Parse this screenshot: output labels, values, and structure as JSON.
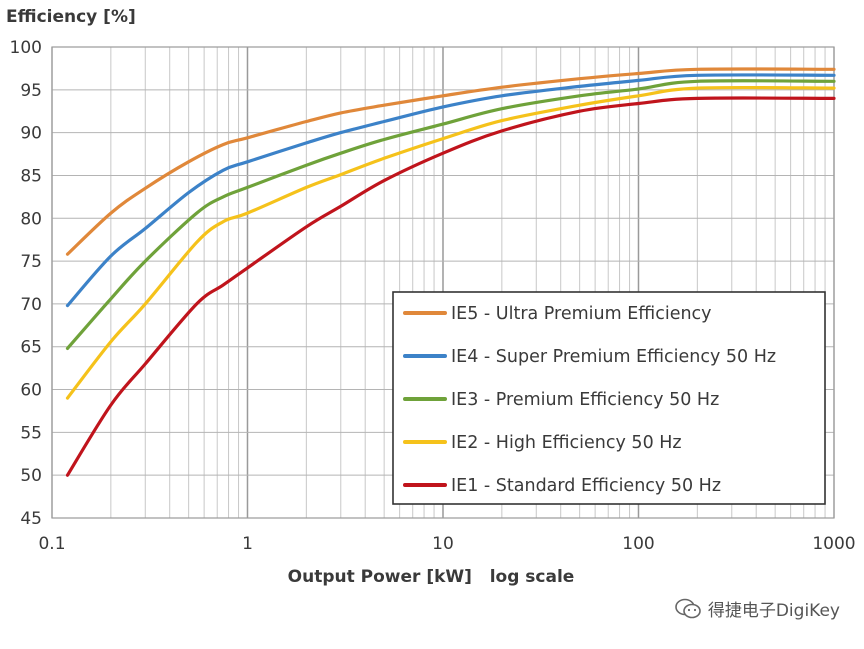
{
  "chart_data": {
    "type": "line",
    "title": "",
    "ylabel": "Efficiency  [%]",
    "xlabel": "Output Power [kW]   log scale",
    "xscale": "log",
    "xlim": [
      0.1,
      1000
    ],
    "ylim": [
      45,
      100
    ],
    "x_ticks": [
      "0.1",
      "1",
      "10",
      "100",
      "1000"
    ],
    "y_ticks": [
      "45",
      "50",
      "55",
      "60",
      "65",
      "70",
      "75",
      "80",
      "85",
      "90",
      "95",
      "100"
    ],
    "grid": true,
    "legend_position": "bottom-right",
    "series": [
      {
        "name": "IE5 - Ultra Premium Efficiency",
        "color": "#E0883A",
        "points": [
          [
            0.12,
            75.8
          ],
          [
            0.2,
            80.6
          ],
          [
            0.3,
            83.5
          ],
          [
            0.5,
            86.6
          ],
          [
            0.75,
            88.6
          ],
          [
            1,
            89.4
          ],
          [
            2,
            91.3
          ],
          [
            3,
            92.3
          ],
          [
            5,
            93.2
          ],
          [
            10,
            94.3
          ],
          [
            20,
            95.3
          ],
          [
            50,
            96.3
          ],
          [
            100,
            96.9
          ],
          [
            200,
            97.4
          ],
          [
            1000,
            97.4
          ]
        ]
      },
      {
        "name": "IE4 - Super Premium Efficiency 50 Hz",
        "color": "#3C82C8",
        "points": [
          [
            0.12,
            69.8
          ],
          [
            0.2,
            75.6
          ],
          [
            0.3,
            78.8
          ],
          [
            0.5,
            83.0
          ],
          [
            0.75,
            85.6
          ],
          [
            1,
            86.6
          ],
          [
            2,
            88.8
          ],
          [
            3,
            90.0
          ],
          [
            5,
            91.3
          ],
          [
            10,
            93.0
          ],
          [
            20,
            94.3
          ],
          [
            50,
            95.4
          ],
          [
            100,
            96.1
          ],
          [
            200,
            96.7
          ],
          [
            1000,
            96.7
          ]
        ]
      },
      {
        "name": "IE3 - Premium Efficiency 50 Hz",
        "color": "#6FA23A",
        "points": [
          [
            0.12,
            64.8
          ],
          [
            0.2,
            70.6
          ],
          [
            0.3,
            75.0
          ],
          [
            0.55,
            80.6
          ],
          [
            0.75,
            82.5
          ],
          [
            1,
            83.6
          ],
          [
            2,
            86.2
          ],
          [
            3,
            87.6
          ],
          [
            5,
            89.2
          ],
          [
            10,
            91.0
          ],
          [
            20,
            92.8
          ],
          [
            50,
            94.3
          ],
          [
            100,
            95.1
          ],
          [
            200,
            96.0
          ],
          [
            1000,
            96.0
          ]
        ]
      },
      {
        "name": "IE2 - High Efficiency 50 Hz",
        "color": "#F5C21B",
        "points": [
          [
            0.12,
            59.0
          ],
          [
            0.2,
            65.6
          ],
          [
            0.3,
            70.0
          ],
          [
            0.55,
            77.2
          ],
          [
            0.75,
            79.6
          ],
          [
            1,
            80.6
          ],
          [
            2,
            83.6
          ],
          [
            3,
            85.1
          ],
          [
            5,
            87.0
          ],
          [
            10,
            89.3
          ],
          [
            20,
            91.4
          ],
          [
            50,
            93.2
          ],
          [
            100,
            94.3
          ],
          [
            200,
            95.2
          ],
          [
            1000,
            95.2
          ]
        ]
      },
      {
        "name": "IE1 - Standard Efficiency 50 Hz",
        "color": "#C0141C",
        "points": [
          [
            0.12,
            50.0
          ],
          [
            0.2,
            58.2
          ],
          [
            0.3,
            63.0
          ],
          [
            0.55,
            70.0
          ],
          [
            0.75,
            72.2
          ],
          [
            1,
            74.2
          ],
          [
            2,
            79.0
          ],
          [
            3,
            81.4
          ],
          [
            5,
            84.4
          ],
          [
            10,
            87.6
          ],
          [
            20,
            90.2
          ],
          [
            50,
            92.5
          ],
          [
            100,
            93.4
          ],
          [
            200,
            94.0
          ],
          [
            1000,
            94.0
          ]
        ]
      }
    ]
  },
  "watermark": {
    "text": "得捷电子DigiKey",
    "icon": "wechat-icon"
  }
}
